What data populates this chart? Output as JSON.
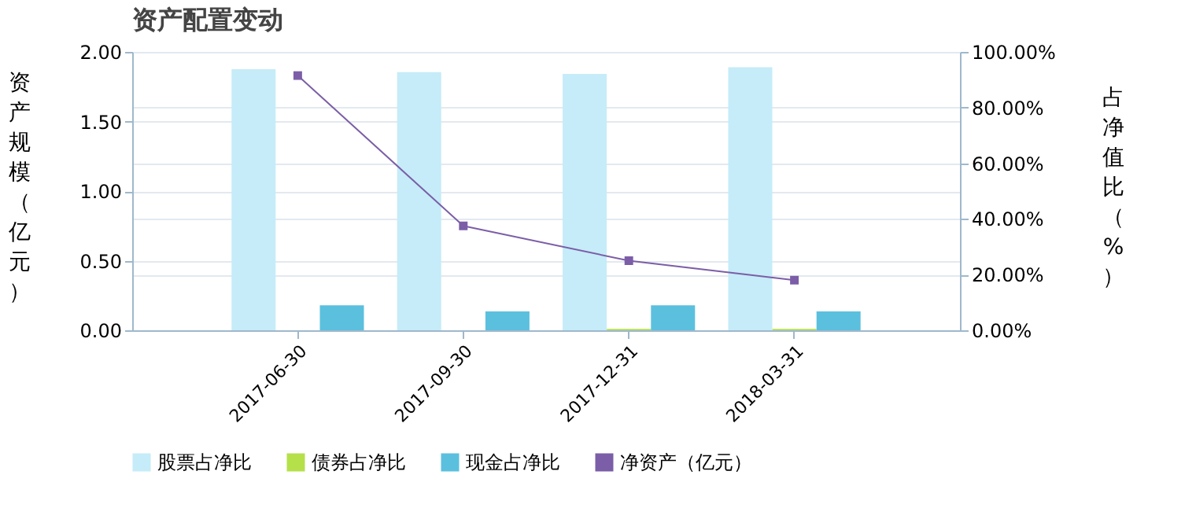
{
  "chart_data": {
    "type": "bar",
    "title": "资产配置变动",
    "ylabel": "资产规模（亿元）",
    "y2label": "占净值比（%）",
    "categories": [
      "2017-06-30",
      "2017-09-30",
      "2017-12-31",
      "2018-03-31"
    ],
    "series": [
      {
        "name": "股票占净比",
        "axis": "y2",
        "color": "#c5ecf8",
        "values": [
          93.8,
          92.7,
          92.1,
          94.5
        ]
      },
      {
        "name": "债券占净比",
        "axis": "y2",
        "color": "#b5e04a",
        "values": [
          0,
          0,
          0.5,
          0.5
        ]
      },
      {
        "name": "现金占净比",
        "axis": "y2",
        "color": "#5bc0de",
        "values": [
          9.0,
          6.8,
          9.0,
          6.8
        ]
      },
      {
        "name": "净资产（亿元）",
        "type": "line",
        "axis": "y",
        "color": "#7b5ea7",
        "values": [
          1.83,
          0.75,
          0.5,
          0.36
        ]
      }
    ],
    "ylim": [
      0,
      2
    ],
    "yticks": [
      {
        "value": 0,
        "label": "0.00"
      },
      {
        "value": 0.5,
        "label": "0.50"
      },
      {
        "value": 1,
        "label": "1.00"
      },
      {
        "value": 1.5,
        "label": "1.50"
      },
      {
        "value": 2,
        "label": "2.00"
      }
    ],
    "y2lim": [
      0,
      100
    ],
    "y2ticks": [
      {
        "value": 0,
        "label": "0.00%"
      },
      {
        "value": 20,
        "label": "20.00%"
      },
      {
        "value": 40,
        "label": "40.00%"
      },
      {
        "value": 60,
        "label": "60.00%"
      },
      {
        "value": 80,
        "label": "80.00%"
      },
      {
        "value": 100,
        "label": "100.00%"
      }
    ],
    "grid": "y",
    "legend": "bottom",
    "marker": "square",
    "line_style": "solid"
  }
}
